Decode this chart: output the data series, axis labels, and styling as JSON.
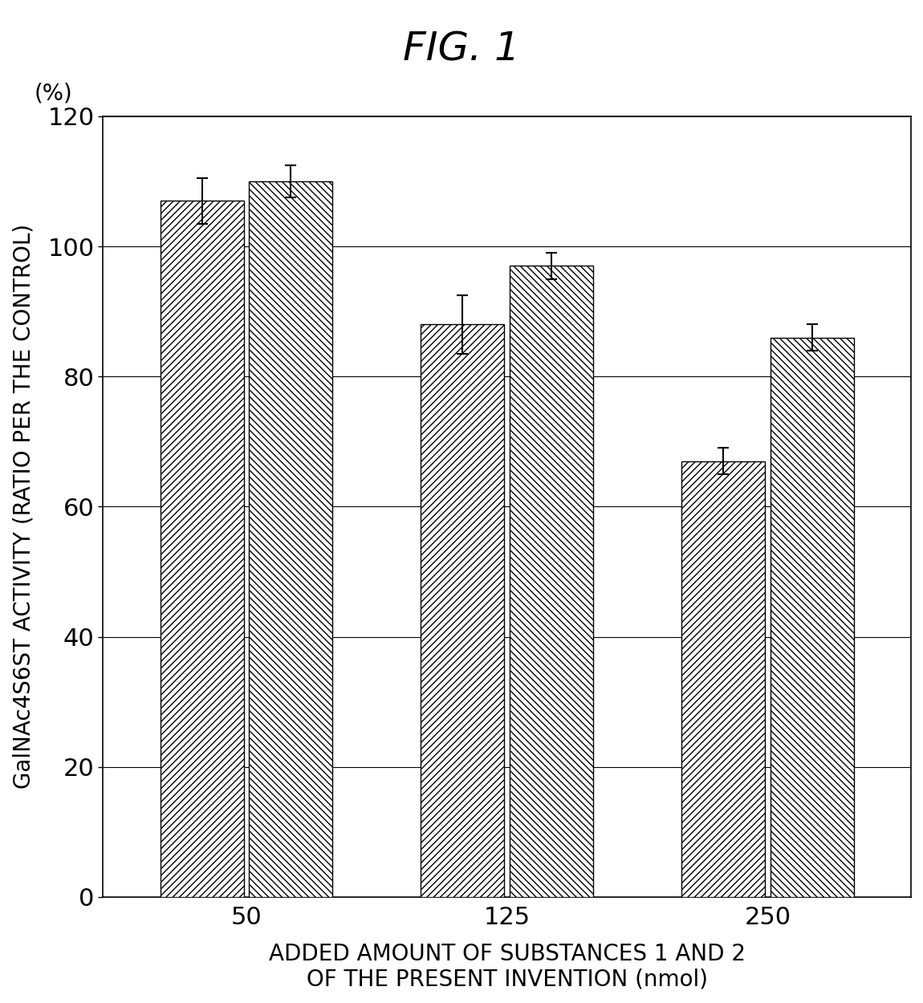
{
  "title": "FIG. 1",
  "xlabel_line1": "ADDED AMOUNT OF SUBSTANCES 1 AND 2",
  "xlabel_line2": "OF THE PRESENT INVENTION (nmol)",
  "ylabel": "GalNAc4S6ST ACTIVITY (RATIO PER THE CONTROL)",
  "ylabel_percent": "(%)",
  "categories": [
    "50",
    "125",
    "250"
  ],
  "bar1_values": [
    107,
    88,
    67
  ],
  "bar2_values": [
    110,
    97,
    86
  ],
  "bar1_errors": [
    3.5,
    4.5,
    2.0
  ],
  "bar2_errors": [
    2.5,
    2.0,
    2.0
  ],
  "ylim": [
    0,
    120
  ],
  "yticks": [
    0,
    20,
    40,
    60,
    80,
    100,
    120
  ],
  "bar_width": 0.32,
  "background_color": "#ffffff",
  "bar1_hatch": "////",
  "bar2_hatch": "\\\\\\\\",
  "bar_edgecolor": "#000000",
  "bar1_facecolor": "#ffffff",
  "bar2_facecolor": "#ffffff",
  "title_fontsize": 36,
  "ylabel_fontsize": 20,
  "xlabel_fontsize": 20,
  "tick_fontsize": 22,
  "percent_fontsize": 20
}
